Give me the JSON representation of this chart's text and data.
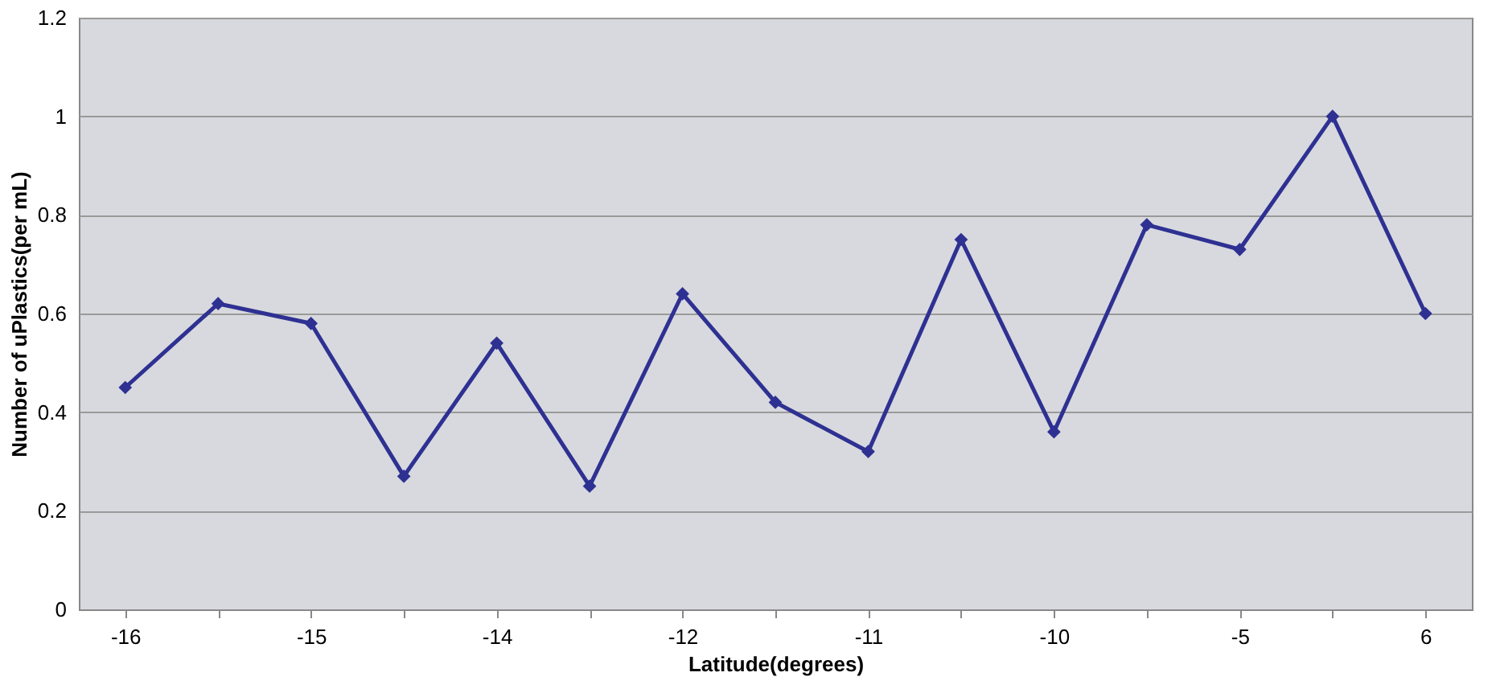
{
  "chart_data": {
    "type": "line",
    "xlabel": "Latitude(degrees)",
    "ylabel": "Number of uPlastics(per mL)",
    "categories": [
      "-16",
      null,
      "-15",
      null,
      "-14",
      null,
      "-12",
      null,
      "-11",
      null,
      "-10",
      null,
      "-5",
      null,
      "6"
    ],
    "series": [
      {
        "color": "#2e3192",
        "values": [
          0.45,
          0.62,
          0.58,
          0.27,
          0.54,
          0.25,
          0.64,
          0.42,
          0.32,
          0.75,
          0.36,
          0.78,
          0.73,
          1.0,
          0.6
        ]
      }
    ],
    "ylim": [
      0,
      1.2
    ],
    "yticks": [
      0,
      0.2,
      0.4,
      0.6,
      0.8,
      1,
      1.2
    ],
    "grid": "y",
    "marker": "diamond",
    "line_style": "solid"
  }
}
